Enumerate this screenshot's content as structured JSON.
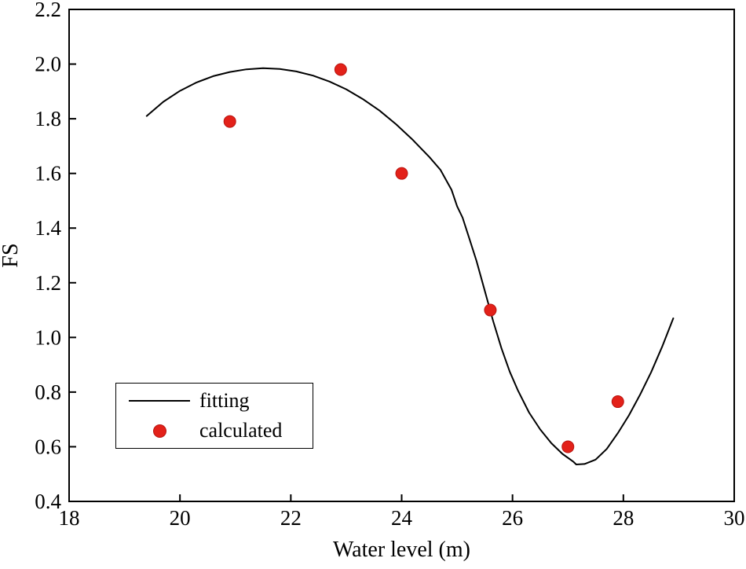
{
  "chart_data": {
    "type": "line",
    "title": "",
    "xlabel": "Water level (m)",
    "ylabel": "FS",
    "xlim": [
      18,
      30
    ],
    "ylim": [
      0.4,
      2.2
    ],
    "xticks": [
      18,
      20,
      22,
      24,
      26,
      28,
      30
    ],
    "yticks": [
      0.4,
      0.6,
      0.8,
      1.0,
      1.2,
      1.4,
      1.6,
      1.8,
      2.0,
      2.2
    ],
    "grid": false,
    "legend_position": "lower-left",
    "colors": {
      "line": "#000000",
      "marker": "#e32119",
      "axis": "#000000"
    },
    "series": [
      {
        "name": "fitting",
        "kind": "line",
        "points": [
          [
            19.4,
            1.81
          ],
          [
            19.7,
            1.862
          ],
          [
            20.0,
            1.902
          ],
          [
            20.3,
            1.933
          ],
          [
            20.6,
            1.956
          ],
          [
            20.9,
            1.971
          ],
          [
            21.2,
            1.981
          ],
          [
            21.5,
            1.985
          ],
          [
            21.8,
            1.982
          ],
          [
            22.1,
            1.973
          ],
          [
            22.4,
            1.958
          ],
          [
            22.7,
            1.936
          ],
          [
            23.0,
            1.908
          ],
          [
            23.3,
            1.872
          ],
          [
            23.6,
            1.83
          ],
          [
            23.9,
            1.78
          ],
          [
            24.2,
            1.723
          ],
          [
            24.5,
            1.66
          ],
          [
            24.7,
            1.613
          ],
          [
            24.9,
            1.54
          ],
          [
            25.0,
            1.48
          ],
          [
            25.1,
            1.438
          ],
          [
            25.2,
            1.375
          ],
          [
            25.35,
            1.28
          ],
          [
            25.5,
            1.17
          ],
          [
            25.65,
            1.06
          ],
          [
            25.8,
            0.96
          ],
          [
            25.95,
            0.875
          ],
          [
            26.1,
            0.805
          ],
          [
            26.3,
            0.725
          ],
          [
            26.5,
            0.663
          ],
          [
            26.7,
            0.613
          ],
          [
            26.9,
            0.574
          ],
          [
            27.1,
            0.545
          ],
          [
            27.15,
            0.535
          ],
          [
            27.3,
            0.537
          ],
          [
            27.5,
            0.553
          ],
          [
            27.7,
            0.592
          ],
          [
            27.9,
            0.65
          ],
          [
            28.1,
            0.715
          ],
          [
            28.3,
            0.79
          ],
          [
            28.5,
            0.872
          ],
          [
            28.7,
            0.966
          ],
          [
            28.9,
            1.07
          ]
        ]
      },
      {
        "name": "calculated",
        "kind": "scatter",
        "points": [
          [
            20.9,
            1.79
          ],
          [
            22.9,
            1.98
          ],
          [
            24.0,
            1.6
          ],
          [
            25.6,
            1.1
          ],
          [
            27.0,
            0.6
          ],
          [
            27.9,
            0.765
          ]
        ]
      }
    ]
  }
}
